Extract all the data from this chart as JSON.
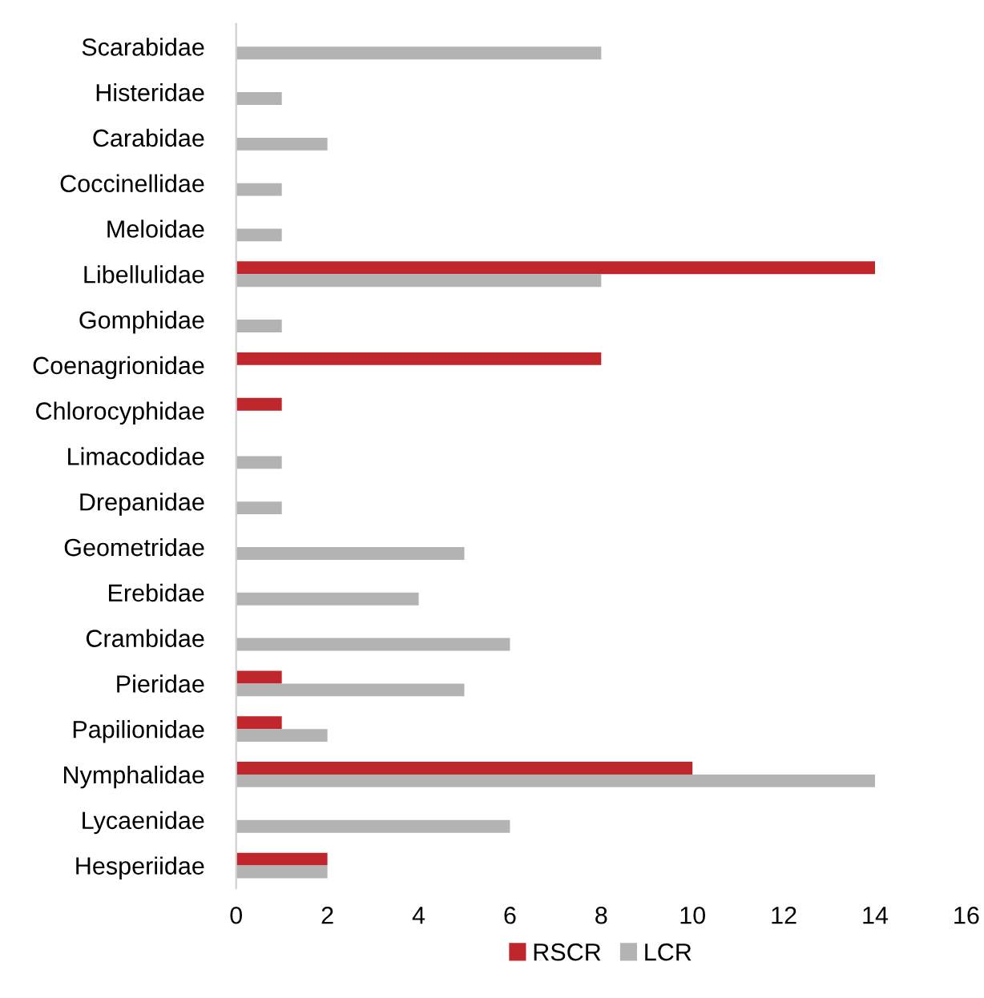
{
  "chart_data": {
    "type": "bar",
    "orientation": "horizontal",
    "categories": [
      "Scarabidae",
      "Histeridae",
      "Carabidae",
      "Coccinellidae",
      "Meloidae",
      "Libellulidae",
      "Gomphidae",
      "Coenagrionidae",
      "Chlorocyphidae",
      "Limacodidae",
      "Drepanidae",
      "Geometridae",
      "Erebidae",
      "Crambidae",
      "Pieridae",
      "Papilionidae",
      "Nymphalidae",
      "Lycaenidae",
      "Hesperiidae"
    ],
    "series": [
      {
        "name": "RSCR",
        "color": "#c0272d",
        "values": [
          null,
          null,
          null,
          null,
          null,
          14,
          null,
          8,
          1,
          null,
          null,
          null,
          null,
          null,
          1,
          1,
          10,
          null,
          2
        ]
      },
      {
        "name": "LCR",
        "color": "#b3b3b3",
        "values": [
          8,
          1,
          2,
          1,
          1,
          8,
          1,
          null,
          null,
          1,
          1,
          5,
          4,
          6,
          5,
          2,
          14,
          6,
          2
        ]
      }
    ],
    "xlim": [
      0,
      16
    ],
    "xticks": [
      0,
      2,
      4,
      6,
      8,
      10,
      12,
      14,
      16
    ],
    "grid": false,
    "legend": "bottom"
  }
}
